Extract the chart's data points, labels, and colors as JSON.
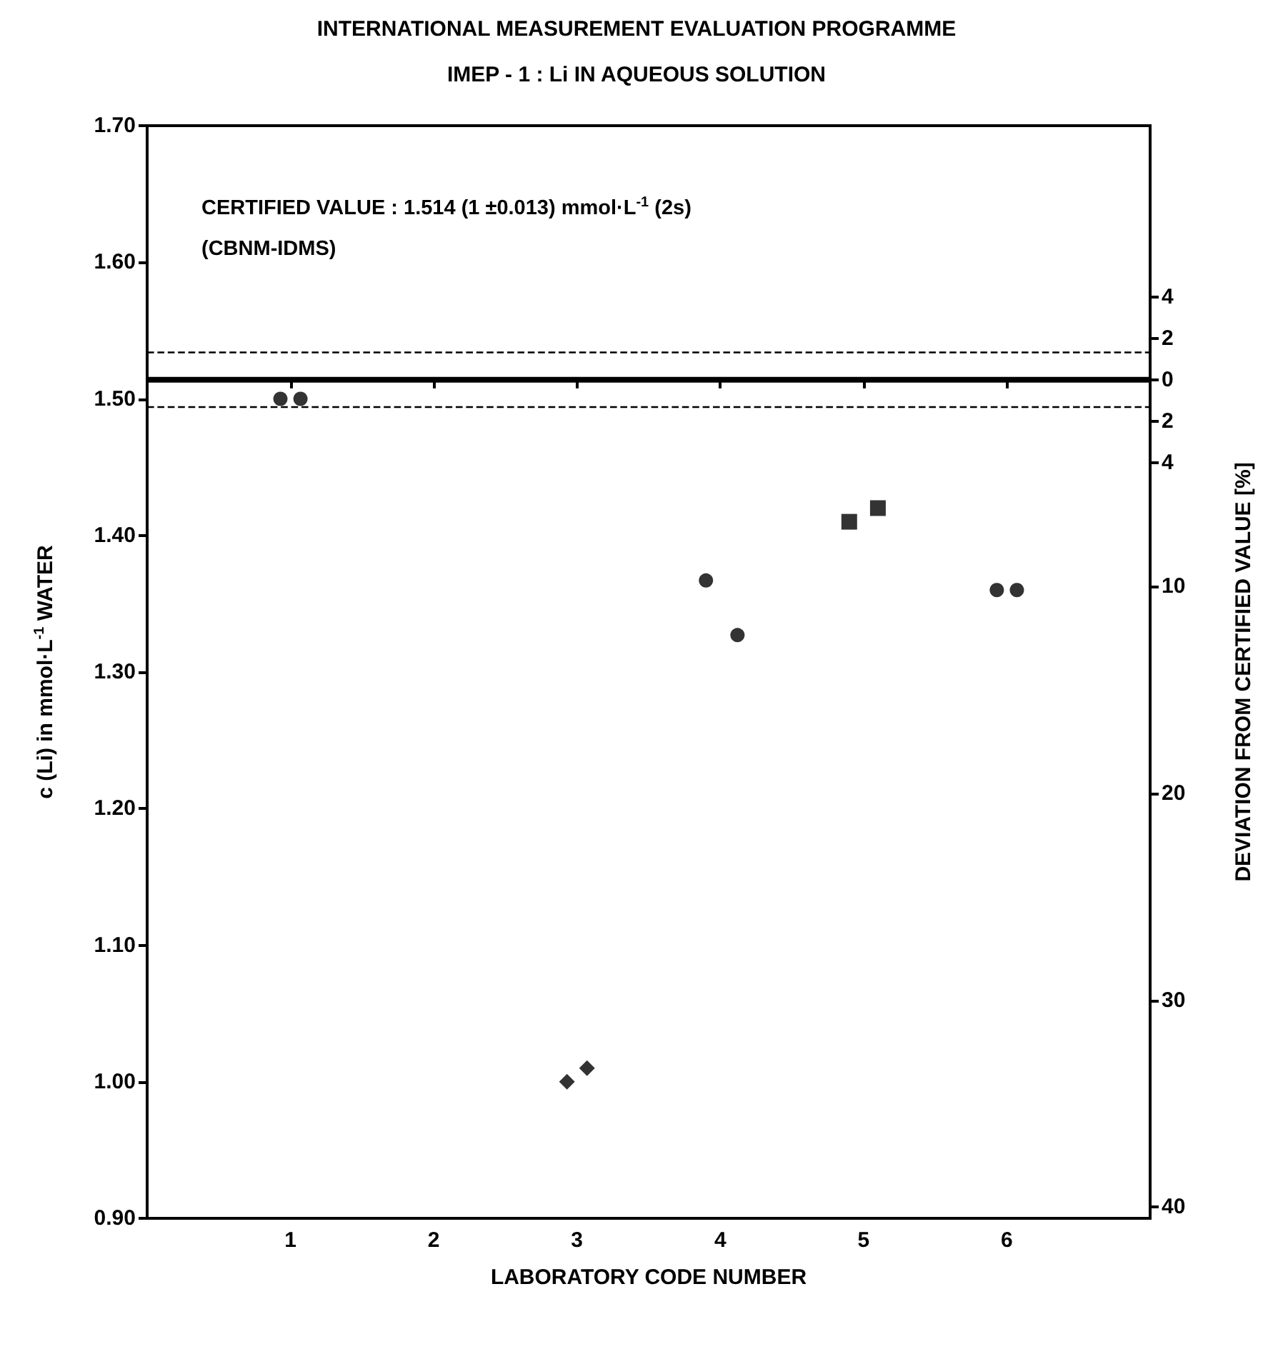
{
  "chart_data": {
    "type": "scatter",
    "title": "INTERNATIONAL MEASUREMENT EVALUATION PROGRAMME",
    "subtitle": "IMEP - 1 : Li IN AQUEOUS SOLUTION",
    "xlabel": "LABORATORY CODE NUMBER",
    "ylabel": "c (Li) in mmol·L$^{-1}$ WATER",
    "y2label": "DEVIATION FROM CERTIFIED VALUE [%]",
    "annotations": [
      "CERTIFIED VALUE : 1.514 (1 ±0.013) mmol·L$^{-1}$ (2s)",
      "(CBNM-IDMS)"
    ],
    "xlim": [
      0,
      7
    ],
    "xticks": [
      1,
      2,
      3,
      4,
      5,
      6
    ],
    "ylim": [
      0.9,
      1.7
    ],
    "yticks": [
      {
        "value": 0.9,
        "label": "0.90"
      },
      {
        "value": 1.0,
        "label": "1.00"
      },
      {
        "value": 1.1,
        "label": "1.10"
      },
      {
        "value": 1.2,
        "label": "1.20"
      },
      {
        "value": 1.3,
        "label": "1.30"
      },
      {
        "value": 1.4,
        "label": "1.40"
      },
      {
        "value": 1.5,
        "label": "1.50"
      },
      {
        "value": 1.6,
        "label": "1.60"
      },
      {
        "value": 1.7,
        "label": "1.70"
      }
    ],
    "y2lim": [
      40.55,
      -12.29
    ],
    "y2ticks": [
      {
        "value": -4,
        "label": "4"
      },
      {
        "value": -2,
        "label": "2"
      },
      0,
      2,
      4,
      10,
      20,
      30,
      40
    ],
    "ref_lines": [
      {
        "axis": "y",
        "value": 1.514,
        "line_style": "solid"
      },
      {
        "axis": "y",
        "value": 1.534,
        "line_style": "dashed"
      },
      {
        "axis": "y",
        "value": 1.494,
        "line_style": "dashed"
      }
    ],
    "series": [
      {
        "color": "#000000",
        "marker": "circle",
        "x": [
          0.93,
          1.07
        ],
        "values": [
          1.5,
          1.5
        ]
      },
      {
        "color": "#000000",
        "marker": "diamond",
        "x": [
          2.93,
          3.07
        ],
        "values": [
          1.0,
          1.01
        ]
      },
      {
        "color": "#000000",
        "marker": "circle",
        "x": [
          3.9,
          4.12
        ],
        "values": [
          1.367,
          1.327
        ]
      },
      {
        "color": "#000000",
        "marker": "square",
        "x": [
          4.9,
          5.1
        ],
        "values": [
          1.41,
          1.42
        ]
      },
      {
        "color": "#000000",
        "marker": "circle",
        "x": [
          5.93,
          6.07
        ],
        "values": [
          1.36,
          1.36
        ]
      }
    ]
  }
}
